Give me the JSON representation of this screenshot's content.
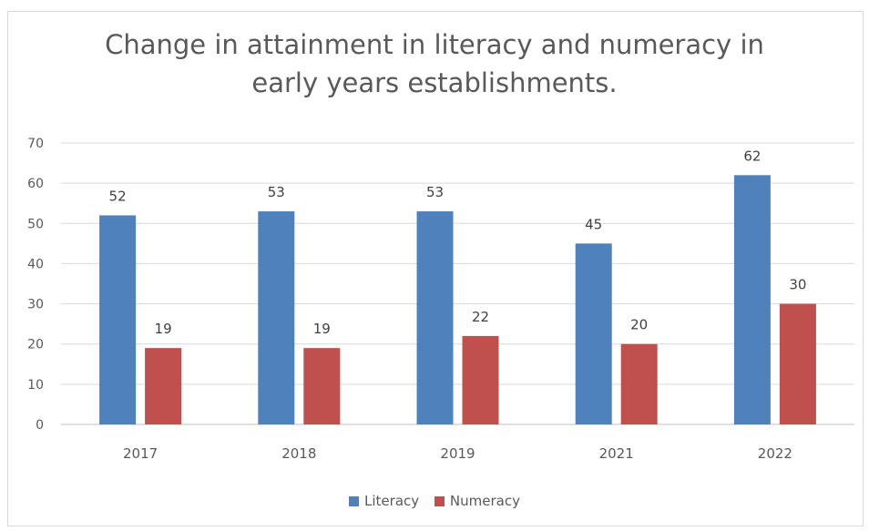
{
  "chart_data": {
    "type": "bar",
    "title_lines": [
      "Change in attainment in literacy and numeracy in",
      "early years establishments."
    ],
    "categories": [
      "2017",
      "2018",
      "2019",
      "2021",
      "2022"
    ],
    "series": [
      {
        "name": "Literacy",
        "color": "#4f81bd",
        "values": [
          52,
          53,
          53,
          45,
          62
        ]
      },
      {
        "name": "Numeracy",
        "color": "#c0504d",
        "values": [
          19,
          19,
          22,
          20,
          30
        ]
      }
    ],
    "yticks": [
      "0",
      "10",
      "20",
      "30",
      "40",
      "50",
      "60",
      "70"
    ],
    "ylim": [
      0,
      70
    ],
    "xlabel": "",
    "ylabel": "",
    "grid": true,
    "legend_position": "bottom"
  }
}
